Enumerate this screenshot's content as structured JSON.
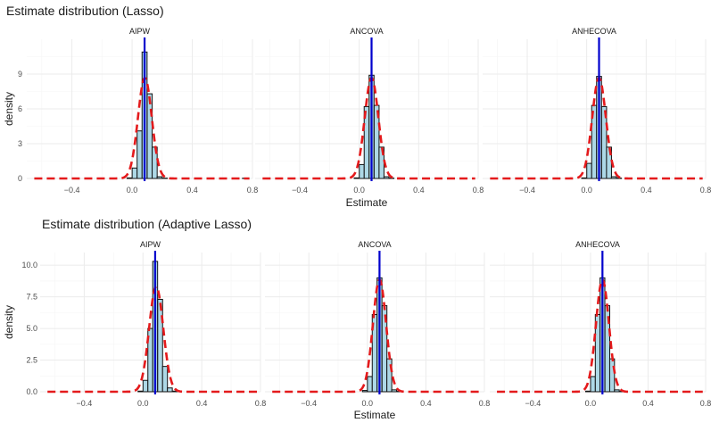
{
  "figure": {
    "colors": {
      "panel_bg": "#ffffff",
      "grid_major": "#ebebeb",
      "grid_minor": "#f5f5f5",
      "bar_fill": "#add8e6",
      "bar_stroke": "#111111",
      "vline": "#0000cd",
      "density_curve": "#e41a1c",
      "text": "#1a1a1a",
      "tick_text": "#4d4d4d"
    }
  },
  "chart_data": [
    {
      "type": "histogram",
      "title": "Estimate distribution (Lasso)",
      "xlabel": "Estimate",
      "ylabel": "density",
      "xlim": [
        -0.7,
        0.8
      ],
      "ylim": [
        0,
        12
      ],
      "xticks": [
        -0.4,
        0.0,
        0.4,
        0.8
      ],
      "xtick_labels": [
        "−0.4",
        "0.0",
        "0.4",
        "0.8"
      ],
      "yticks": [
        0,
        3,
        6,
        9
      ],
      "ytick_labels": [
        "0",
        "3",
        "6",
        "9"
      ],
      "bin_width": 0.0333,
      "grid": true,
      "panels": [
        {
          "label": "AIPW",
          "bins": [
            -0.65,
            -0.617,
            -0.583,
            -0.55,
            -0.517,
            -0.483,
            -0.45,
            -0.417,
            -0.383,
            -0.35,
            -0.317,
            -0.283,
            -0.25,
            -0.217,
            -0.183,
            -0.15,
            -0.117,
            -0.083,
            -0.05,
            -0.017,
            0.017,
            0.05,
            0.083,
            0.117,
            0.15,
            0.183,
            0.217,
            0.25,
            0.283,
            0.317,
            0.35,
            0.383,
            0.417,
            0.45,
            0.483,
            0.517,
            0.55,
            0.583,
            0.617,
            0.65,
            0.683,
            0.717,
            0.75
          ],
          "density": [
            0,
            0,
            0,
            0,
            0,
            0,
            0,
            0,
            0,
            0,
            0,
            0,
            0,
            0,
            0,
            0,
            0,
            0,
            0,
            0.05,
            0.9,
            4.1,
            10.9,
            7.3,
            2.7,
            0.15,
            0.03,
            0,
            0,
            0,
            0,
            0,
            0,
            0,
            0,
            0,
            0,
            0,
            0,
            0,
            0,
            0,
            0.02
          ],
          "true_value": 0.083,
          "normal_mean": 0.085,
          "normal_sd": 0.046
        },
        {
          "label": "ANCOVA",
          "bins": [
            -0.65,
            -0.617,
            -0.583,
            -0.55,
            -0.517,
            -0.483,
            -0.45,
            -0.417,
            -0.383,
            -0.35,
            -0.317,
            -0.283,
            -0.25,
            -0.217,
            -0.183,
            -0.15,
            -0.117,
            -0.083,
            -0.05,
            -0.017,
            0.017,
            0.05,
            0.083,
            0.117,
            0.15,
            0.183,
            0.217,
            0.25,
            0.283,
            0.317,
            0.35,
            0.383,
            0.417,
            0.45,
            0.483,
            0.517,
            0.55,
            0.583,
            0.617,
            0.65,
            0.683,
            0.717,
            0.75
          ],
          "density": [
            0,
            0,
            0,
            0,
            0,
            0,
            0,
            0,
            0,
            0,
            0,
            0,
            0,
            0,
            0,
            0,
            0,
            0,
            0,
            0.05,
            1.2,
            6.2,
            8.9,
            6.3,
            2.7,
            0.15,
            0.03,
            0,
            0,
            0,
            0,
            0,
            0,
            0,
            0,
            0,
            0,
            0,
            0,
            0,
            0,
            0,
            0
          ],
          "true_value": 0.083,
          "normal_mean": 0.083,
          "normal_sd": 0.046
        },
        {
          "label": "ANHECOVA",
          "bins": [
            -0.65,
            -0.617,
            -0.583,
            -0.55,
            -0.517,
            -0.483,
            -0.45,
            -0.417,
            -0.383,
            -0.35,
            -0.317,
            -0.283,
            -0.25,
            -0.217,
            -0.183,
            -0.15,
            -0.117,
            -0.083,
            -0.05,
            -0.017,
            0.017,
            0.05,
            0.083,
            0.117,
            0.15,
            0.183,
            0.217,
            0.25,
            0.283,
            0.317,
            0.35,
            0.383,
            0.417,
            0.45,
            0.483,
            0.517,
            0.55,
            0.583,
            0.617,
            0.65,
            0.683,
            0.717,
            0.75
          ],
          "density": [
            0,
            0,
            0,
            0,
            0,
            0,
            0,
            0,
            0,
            0,
            0,
            0,
            0,
            0,
            0,
            0,
            0,
            0,
            0,
            0.05,
            1.3,
            6.3,
            8.8,
            6.2,
            2.7,
            0.15,
            0.03,
            0,
            0,
            0,
            0,
            0,
            0,
            0,
            0,
            0,
            0,
            0,
            0,
            0,
            0,
            0,
            0
          ],
          "true_value": 0.083,
          "normal_mean": 0.083,
          "normal_sd": 0.046
        }
      ]
    },
    {
      "type": "histogram",
      "title": "Estimate distribution (Adaptive Lasso)",
      "xlabel": "Estimate",
      "ylabel": "density",
      "xlim": [
        -0.7,
        0.8
      ],
      "ylim": [
        0,
        11
      ],
      "xticks": [
        -0.4,
        0.0,
        0.4,
        0.8
      ],
      "xtick_labels": [
        "−0.4",
        "0.0",
        "0.4",
        "0.8"
      ],
      "yticks": [
        0,
        2.5,
        5,
        7.5,
        10
      ],
      "ytick_labels": [
        "0.0",
        "2.5",
        "5.0",
        "7.5",
        "10.0"
      ],
      "bin_width": 0.0333,
      "grid": true,
      "panels": [
        {
          "label": "AIPW",
          "bins": [
            -0.65,
            -0.617,
            -0.583,
            -0.55,
            -0.517,
            -0.483,
            -0.45,
            -0.417,
            -0.383,
            -0.35,
            -0.317,
            -0.283,
            -0.25,
            -0.217,
            -0.183,
            -0.15,
            -0.117,
            -0.083,
            -0.05,
            -0.017,
            0.017,
            0.05,
            0.083,
            0.117,
            0.15,
            0.183,
            0.217,
            0.25,
            0.283,
            0.317,
            0.35,
            0.383,
            0.417,
            0.45,
            0.483,
            0.517,
            0.55,
            0.583,
            0.617,
            0.65,
            0.683,
            0.717,
            0.75
          ],
          "density": [
            0,
            0,
            0,
            0,
            0,
            0,
            0,
            0,
            0,
            0,
            0,
            0,
            0,
            0,
            0,
            0,
            0,
            0,
            0,
            0.05,
            0.9,
            5.0,
            10.3,
            7.3,
            2.0,
            0.3,
            0.05,
            0,
            0,
            0,
            0,
            0,
            0,
            0,
            0,
            0,
            0,
            0,
            0,
            0,
            0,
            0,
            0
          ],
          "true_value": 0.083,
          "normal_mean": 0.09,
          "normal_sd": 0.048
        },
        {
          "label": "ANCOVA",
          "bins": [
            -0.65,
            -0.617,
            -0.583,
            -0.55,
            -0.517,
            -0.483,
            -0.45,
            -0.417,
            -0.383,
            -0.35,
            -0.317,
            -0.283,
            -0.25,
            -0.217,
            -0.183,
            -0.15,
            -0.117,
            -0.083,
            -0.05,
            -0.017,
            0.017,
            0.05,
            0.083,
            0.117,
            0.15,
            0.183,
            0.217,
            0.25,
            0.283,
            0.317,
            0.35,
            0.383,
            0.417,
            0.45,
            0.483,
            0.517,
            0.55,
            0.583,
            0.617,
            0.65,
            0.683,
            0.717,
            0.75
          ],
          "density": [
            0,
            0,
            0,
            0,
            0,
            0,
            0,
            0,
            0,
            0,
            0,
            0,
            0,
            0,
            0,
            0,
            0,
            0,
            0,
            0.1,
            1.2,
            6.1,
            9.0,
            6.8,
            2.6,
            0.15,
            0.03,
            0,
            0,
            0,
            0,
            0,
            0,
            0,
            0,
            0,
            0,
            0,
            0,
            0,
            0,
            0,
            0
          ],
          "true_value": 0.083,
          "normal_mean": 0.083,
          "normal_sd": 0.045
        },
        {
          "label": "ANHECOVA",
          "bins": [
            -0.65,
            -0.617,
            -0.583,
            -0.55,
            -0.517,
            -0.483,
            -0.45,
            -0.417,
            -0.383,
            -0.35,
            -0.317,
            -0.283,
            -0.25,
            -0.217,
            -0.183,
            -0.15,
            -0.117,
            -0.083,
            -0.05,
            -0.017,
            0.017,
            0.05,
            0.083,
            0.117,
            0.15,
            0.183,
            0.217,
            0.25,
            0.283,
            0.317,
            0.35,
            0.383,
            0.417,
            0.45,
            0.483,
            0.517,
            0.55,
            0.583,
            0.617,
            0.65,
            0.683,
            0.717,
            0.75
          ],
          "density": [
            0,
            0,
            0,
            0,
            0,
            0,
            0,
            0,
            0,
            0,
            0,
            0,
            0,
            0,
            0,
            0,
            0,
            0,
            0,
            0.05,
            1.2,
            6.1,
            9.0,
            6.8,
            2.6,
            0.15,
            0.03,
            0,
            0,
            0,
            0,
            0,
            0,
            0,
            0,
            0,
            0,
            0,
            0,
            0,
            0,
            0,
            0
          ],
          "true_value": 0.083,
          "normal_mean": 0.083,
          "normal_sd": 0.045
        }
      ]
    }
  ]
}
